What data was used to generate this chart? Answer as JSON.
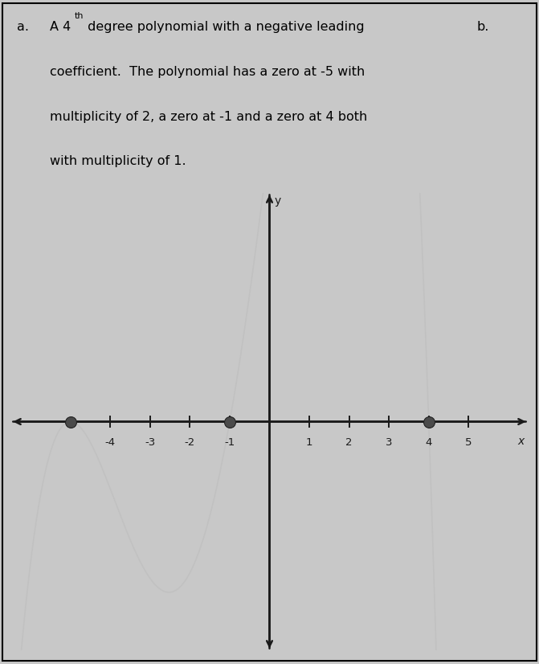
{
  "label_a": "a.",
  "label_b": "b.",
  "zeros": [
    -5,
    -1,
    4
  ],
  "zero_multiplicity": [
    2,
    1,
    1
  ],
  "x_ticks": [
    -4,
    -3,
    -2,
    -1,
    1,
    2,
    3,
    4,
    5
  ],
  "y_label": "y",
  "x_label": "x",
  "xlim": [
    -6.5,
    6.5
  ],
  "ylim": [
    -4.5,
    4.5
  ],
  "axis_color": "#1a1a1a",
  "dot_color": "#4a4a4a",
  "dot_size": 100,
  "curve_color": "#aaaaaa",
  "curve_alpha": 0.22,
  "leading_coeff": -0.055,
  "bg_color": "#c8c8c8",
  "text_bg": "#d0d0d0",
  "fig_width": 6.71,
  "fig_height": 8.26,
  "dpi": 100,
  "line1": "A 4",
  "line1_sup": "th",
  "line1_rest": " degree polynomial with a negative leading",
  "line2": "coefficient.  The polynomial has a zero at -5 with",
  "line3": "multiplicity of 2, a zero at -1 and a zero at 4 both",
  "line4": "with multiplicity of 1.",
  "text_fontsize": 11.5,
  "sup_fontsize": 8
}
